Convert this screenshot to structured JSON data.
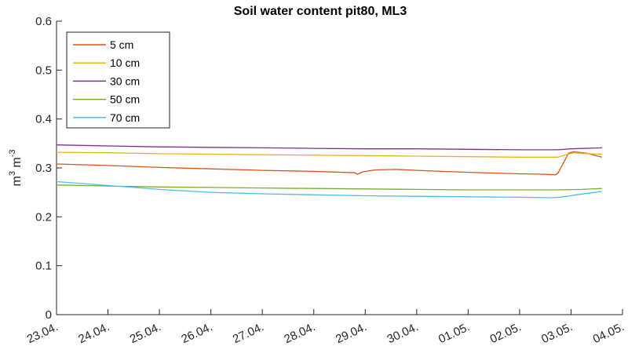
{
  "chart_data": {
    "type": "line",
    "title": "Soil water content pit80, ML3",
    "ylabel": {
      "base": "m",
      "exp1": "3",
      "mid": " m",
      "exp2": "-3"
    },
    "xlabel": "",
    "x_unit": "days since 23.04.",
    "xlim": [
      0,
      11
    ],
    "ylim": [
      0,
      0.6
    ],
    "yticks": [
      0,
      0.1,
      0.2,
      0.3,
      0.4,
      0.5,
      0.6
    ],
    "ytick_labels": [
      "0",
      "0.1",
      "0.2",
      "0.3",
      "0.4",
      "0.5",
      "0.6"
    ],
    "xticks": [
      0,
      1,
      2,
      3,
      4,
      5,
      6,
      7,
      8,
      9,
      10,
      11
    ],
    "xtick_labels": [
      "23.04.",
      "24.04.",
      "25.04.",
      "26.04.",
      "27.04.",
      "28.04.",
      "29.04.",
      "30.04.",
      "01.05.",
      "02.05.",
      "03.05.",
      "04.05."
    ],
    "grid": false,
    "legend_position": "top-left",
    "series": [
      {
        "name": "5 cm",
        "color": "#d95319",
        "points": [
          [
            0,
            0.308
          ],
          [
            1,
            0.305
          ],
          [
            2,
            0.301
          ],
          [
            3,
            0.298
          ],
          [
            4,
            0.295
          ],
          [
            5,
            0.293
          ],
          [
            5.8,
            0.29
          ],
          [
            5.85,
            0.287
          ],
          [
            5.95,
            0.292
          ],
          [
            6.2,
            0.296
          ],
          [
            6.6,
            0.297
          ],
          [
            7,
            0.295
          ],
          [
            8,
            0.291
          ],
          [
            9,
            0.288
          ],
          [
            9.5,
            0.287
          ],
          [
            9.7,
            0.286
          ],
          [
            9.75,
            0.29
          ],
          [
            9.85,
            0.31
          ],
          [
            9.95,
            0.33
          ],
          [
            10.05,
            0.333
          ],
          [
            10.3,
            0.33
          ],
          [
            10.6,
            0.322
          ]
        ]
      },
      {
        "name": "10 cm",
        "color": "#edb120",
        "points": [
          [
            0,
            0.332
          ],
          [
            1,
            0.331
          ],
          [
            2,
            0.329
          ],
          [
            3,
            0.328
          ],
          [
            4,
            0.327
          ],
          [
            5,
            0.326
          ],
          [
            6,
            0.325
          ],
          [
            7,
            0.324
          ],
          [
            8,
            0.323
          ],
          [
            9,
            0.322
          ],
          [
            9.75,
            0.322
          ],
          [
            9.9,
            0.327
          ],
          [
            10.05,
            0.331
          ],
          [
            10.3,
            0.329
          ],
          [
            10.6,
            0.328
          ]
        ]
      },
      {
        "name": "30 cm",
        "color": "#7e2f8e",
        "points": [
          [
            0,
            0.347
          ],
          [
            1,
            0.345
          ],
          [
            2,
            0.343
          ],
          [
            3,
            0.342
          ],
          [
            4,
            0.341
          ],
          [
            5,
            0.34
          ],
          [
            6,
            0.339
          ],
          [
            7,
            0.339
          ],
          [
            8,
            0.338
          ],
          [
            9,
            0.337
          ],
          [
            9.75,
            0.337
          ],
          [
            10.0,
            0.339
          ],
          [
            10.6,
            0.341
          ]
        ]
      },
      {
        "name": "50 cm",
        "color": "#77ac30",
        "points": [
          [
            0,
            0.265
          ],
          [
            1,
            0.263
          ],
          [
            2,
            0.261
          ],
          [
            3,
            0.26
          ],
          [
            4,
            0.259
          ],
          [
            5,
            0.258
          ],
          [
            6,
            0.257
          ],
          [
            7,
            0.256
          ],
          [
            8,
            0.255
          ],
          [
            9,
            0.255
          ],
          [
            9.75,
            0.255
          ],
          [
            10.2,
            0.256
          ],
          [
            10.6,
            0.258
          ]
        ]
      },
      {
        "name": "70 cm",
        "color": "#4dbeee",
        "points": [
          [
            0,
            0.272
          ],
          [
            0.5,
            0.268
          ],
          [
            1,
            0.264
          ],
          [
            1.5,
            0.26
          ],
          [
            2,
            0.256
          ],
          [
            2.5,
            0.253
          ],
          [
            3,
            0.25
          ],
          [
            4,
            0.247
          ],
          [
            5,
            0.245
          ],
          [
            6,
            0.243
          ],
          [
            7,
            0.242
          ],
          [
            8,
            0.241
          ],
          [
            9,
            0.24
          ],
          [
            9.6,
            0.239
          ],
          [
            9.8,
            0.24
          ],
          [
            10.1,
            0.245
          ],
          [
            10.6,
            0.252
          ]
        ]
      }
    ]
  }
}
